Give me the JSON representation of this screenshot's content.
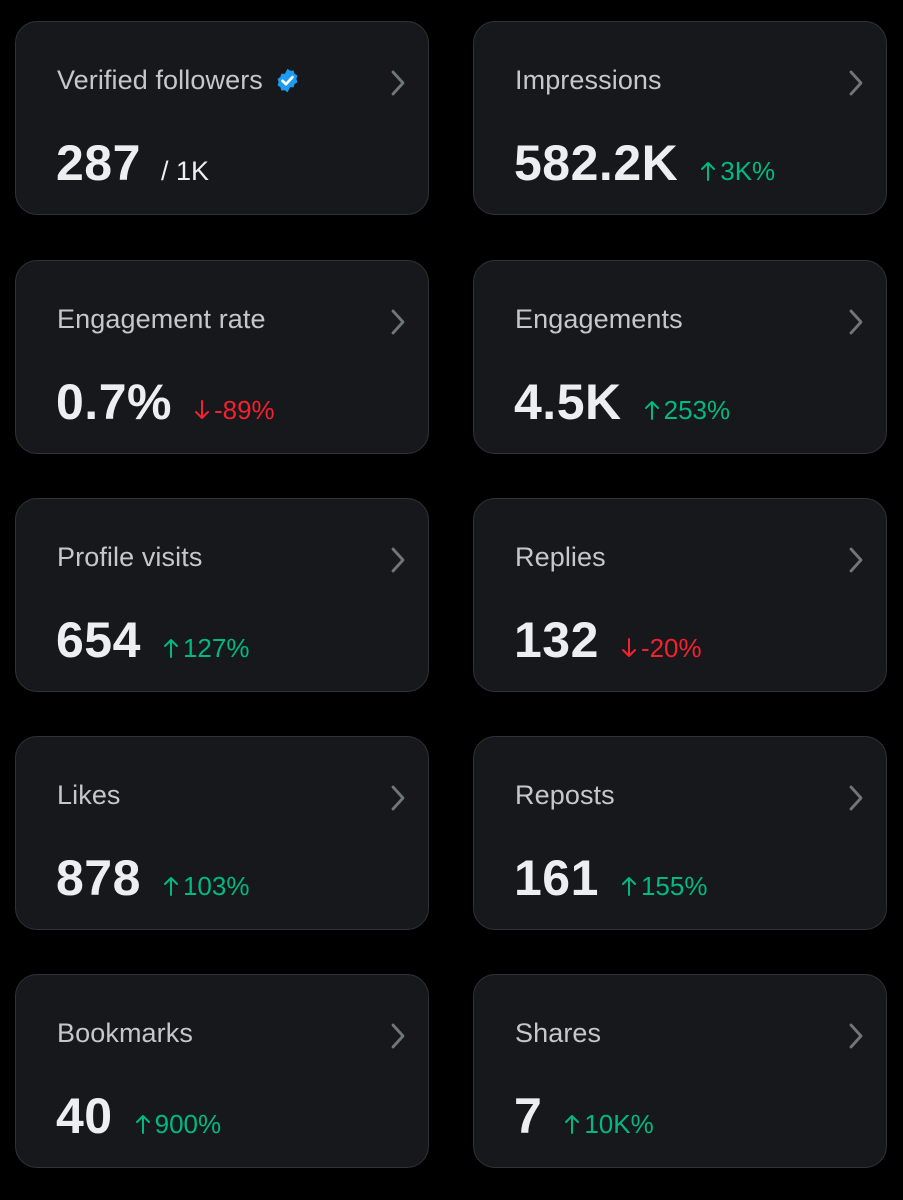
{
  "colors": {
    "background": "#000000",
    "card_background": "#16181c",
    "card_border": "#2f3336",
    "label_text": "#c4c7cb",
    "value_text": "#eceeef",
    "positive_change": "#00ba7c",
    "negative_change": "#f4212e",
    "verified_badge": "#1d9bf0"
  },
  "cards": [
    {
      "label": "Verified followers",
      "value": "287",
      "suffix": "/ 1K",
      "icon": "verified-badge-icon"
    },
    {
      "label": "Impressions",
      "value": "582.2K",
      "change": "3K%",
      "direction": "up"
    },
    {
      "label": "Engagement rate",
      "value": "0.7%",
      "change": "-89%",
      "direction": "down"
    },
    {
      "label": "Engagements",
      "value": "4.5K",
      "change": "253%",
      "direction": "up"
    },
    {
      "label": "Profile visits",
      "value": "654",
      "change": "127%",
      "direction": "up"
    },
    {
      "label": "Replies",
      "value": "132",
      "change": "-20%",
      "direction": "down"
    },
    {
      "label": "Likes",
      "value": "878",
      "change": "103%",
      "direction": "up"
    },
    {
      "label": "Reposts",
      "value": "161",
      "change": "155%",
      "direction": "up"
    },
    {
      "label": "Bookmarks",
      "value": "40",
      "change": "900%",
      "direction": "up"
    },
    {
      "label": "Shares",
      "value": "7",
      "change": "10K%",
      "direction": "up"
    }
  ]
}
